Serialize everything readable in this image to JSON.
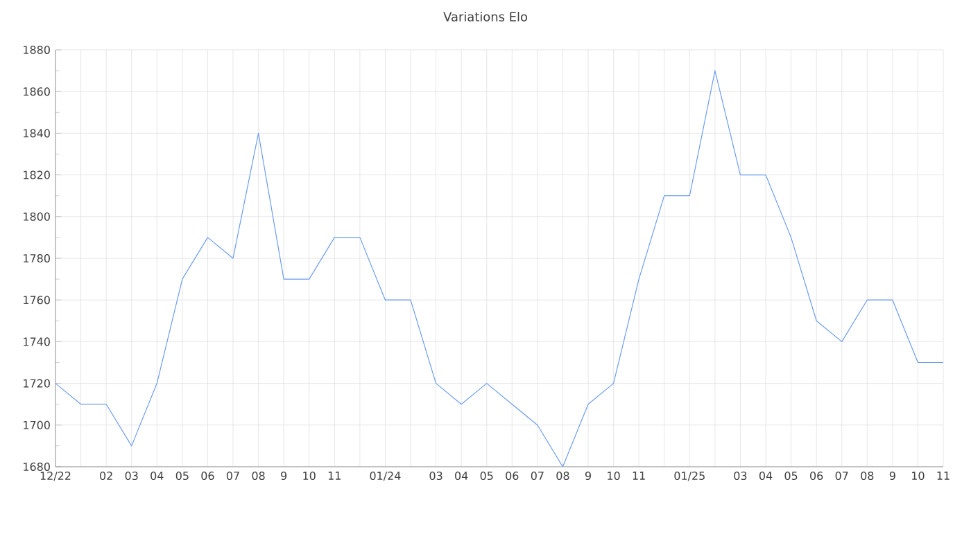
{
  "chart_data": {
    "type": "line",
    "title": "Variations Elo",
    "categories": [
      "12/22",
      null,
      "02",
      "03",
      "04",
      "05",
      "06",
      "07",
      "08",
      "9",
      "10",
      "11",
      null,
      "01/24",
      null,
      "03",
      "04",
      "05",
      "06",
      "07",
      "08",
      "9",
      "10",
      "11",
      null,
      "01/25",
      null,
      "03",
      "04",
      "05",
      "06",
      "07",
      "08",
      "9",
      "10",
      "11"
    ],
    "series": [
      {
        "color": "#6b9cf0",
        "values": [
          1720,
          1710,
          1710,
          1690,
          1720,
          1770,
          1790,
          1780,
          1840,
          1770,
          1770,
          1790,
          1790,
          1760,
          1760,
          1720,
          1710,
          1720,
          1710,
          1700,
          1680,
          1710,
          1720,
          1770,
          1810,
          1810,
          1870,
          1820,
          1820,
          1790,
          1750,
          1740,
          1760,
          1760,
          1730,
          1730
        ]
      }
    ],
    "ylim": [
      1680,
      1880
    ],
    "yticks": [
      1680,
      1700,
      1720,
      1740,
      1760,
      1780,
      1800,
      1820,
      1840,
      1860,
      1880
    ],
    "grid": true,
    "marker": "none",
    "line_style": "solid"
  }
}
